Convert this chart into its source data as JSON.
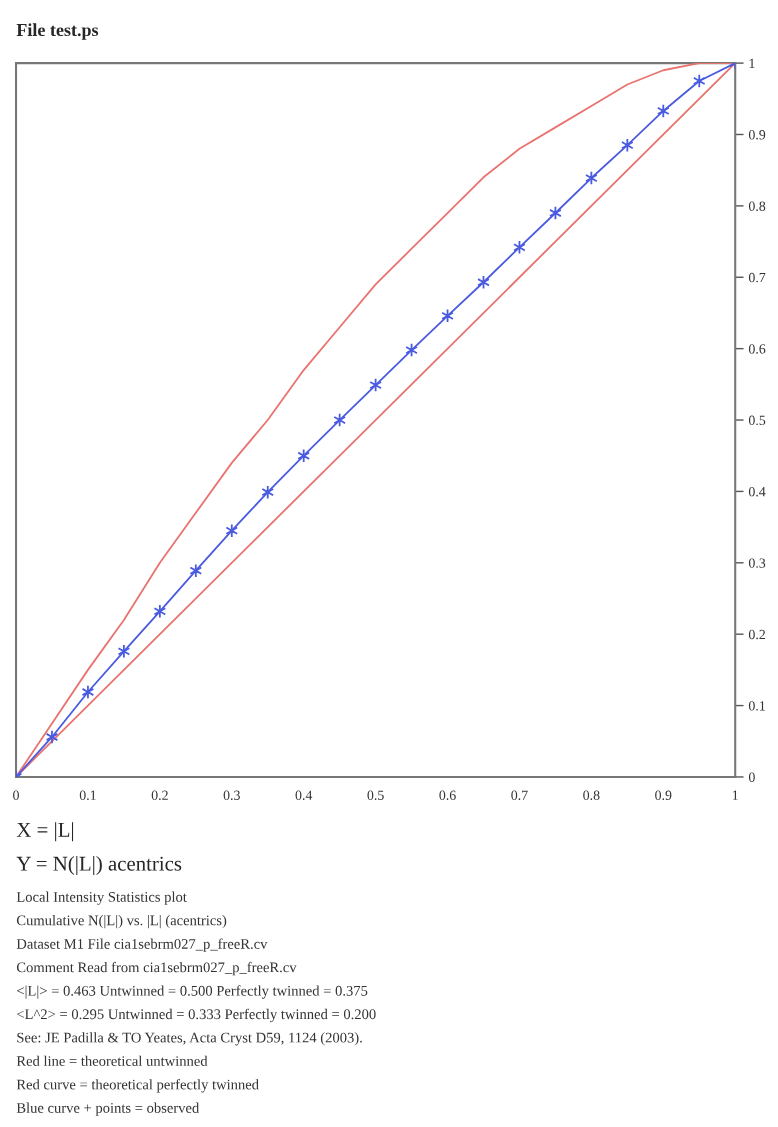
{
  "chart_data": {
    "type": "line",
    "title": "File test.ps",
    "xlabel": "X = |L|",
    "xlim": [
      0,
      1
    ],
    "ylim": [
      0,
      1
    ],
    "xticks": [
      0,
      0.1,
      0.2,
      0.3,
      0.4,
      0.5,
      0.6,
      0.7,
      0.8,
      0.9,
      1
    ],
    "yticks": [
      0,
      0.1,
      0.2,
      0.3,
      0.4,
      0.5,
      0.6,
      0.7,
      0.8,
      0.9,
      1
    ],
    "grid": false,
    "series": [
      {
        "color": "#e8736f",
        "marker": "none",
        "x": [
          0,
          1
        ],
        "values": [
          0,
          1
        ]
      },
      {
        "color": "#e8736f",
        "marker": "none",
        "x": [
          0,
          0.05,
          0.1,
          0.15,
          0.2,
          0.25,
          0.3,
          0.35,
          0.4,
          0.45,
          0.5,
          0.55,
          0.6,
          0.65,
          0.7,
          0.75,
          0.8,
          0.85,
          0.9,
          0.95,
          1
        ],
        "values": [
          0,
          0.075,
          0.15,
          0.22,
          0.3,
          0.37,
          0.44,
          0.5,
          0.57,
          0.63,
          0.69,
          0.74,
          0.79,
          0.84,
          0.88,
          0.91,
          0.94,
          0.97,
          0.99,
          1.0,
          1
        ]
      },
      {
        "color": "#4a5be0",
        "marker": "cross",
        "x": [
          0,
          0.05,
          0.1,
          0.15,
          0.2,
          0.25,
          0.3,
          0.35,
          0.4,
          0.45,
          0.5,
          0.55,
          0.6,
          0.65,
          0.7,
          0.75,
          0.8,
          0.85,
          0.9,
          0.95,
          1
        ],
        "values": [
          0,
          0.056,
          0.119,
          0.176,
          0.232,
          0.289,
          0.345,
          0.399,
          0.45,
          0.5,
          0.549,
          0.598,
          0.646,
          0.693,
          0.742,
          0.79,
          0.839,
          0.885,
          0.933,
          0.975,
          1
        ]
      }
    ],
    "annotations": [
      "Y = N(|L|) acentrics",
      "Local Intensity Statistics plot",
      "Cumulative N(|L|) vs. |L| (acentrics)",
      "Dataset M1 File cia1sebrm027_p_freeR.cv",
      "Comment Read from cia1sebrm027_p_freeR.cv",
      "<|L|> = 0.463 Untwinned = 0.500 Perfectly twinned = 0.375",
      "<L^2> = 0.295 Untwinned = 0.333 Perfectly twinned = 0.200",
      "See: JE Padilla & TO Yeates, Acta Cryst D59, 1124 (2003).",
      "Red line = theoretical untwinned",
      "Red curve = theoretical perfectly twinned",
      "Blue curve + points = observed"
    ]
  }
}
